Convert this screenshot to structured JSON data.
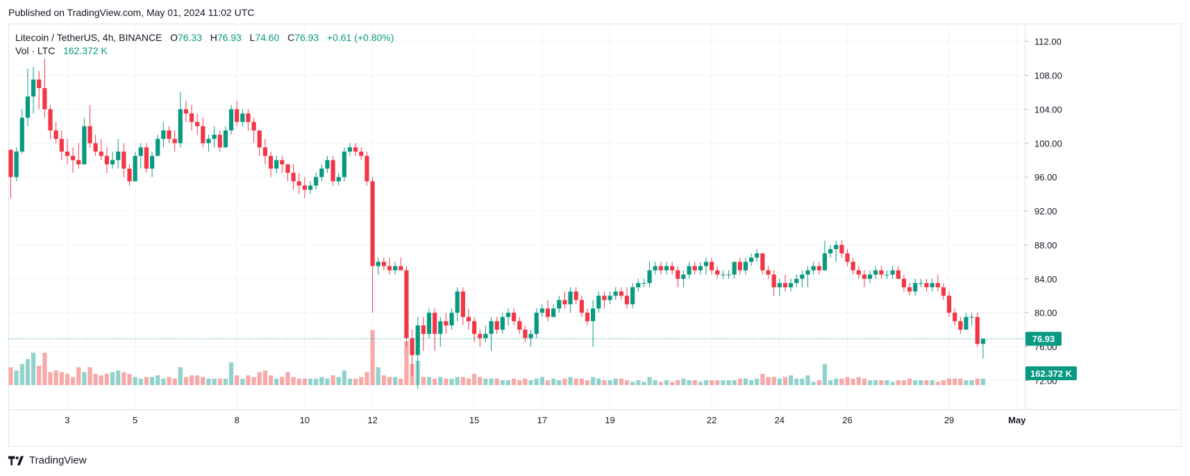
{
  "published": "Published on TradingView.com, May 01, 2024 11:02 UTC",
  "brand": "TradingView",
  "legend": {
    "symbol": "Litecoin / TetherUS, 4h, BINANCE",
    "o_label": "O",
    "o_value": "76.33",
    "h_label": "H",
    "h_value": "76.93",
    "l_label": "L",
    "l_value": "74.60",
    "c_label": "C",
    "c_value": "76.93",
    "change": "+0.61 (+0.80%)",
    "vol_label": "Vol · LTC",
    "vol_value": "162.372 K"
  },
  "colors": {
    "up": "#089981",
    "down": "#F23645",
    "vol_up": "#92D2CC",
    "vol_down": "#F7A9A7",
    "grid": "#F0F3FA"
  },
  "chart_data": {
    "type": "candlestick",
    "symbol": "LTCUSDT",
    "interval": "4h",
    "ylim": [
      68.6,
      114.1
    ],
    "y_ticks": [
      "112.00",
      "108.00",
      "104.00",
      "100.00",
      "96.00",
      "92.00",
      "88.00",
      "84.00",
      "80.00",
      "76.00",
      "72.00"
    ],
    "x_ticks": [
      {
        "label": "3",
        "index": 10
      },
      {
        "label": "5",
        "index": 22
      },
      {
        "label": "8",
        "index": 40
      },
      {
        "label": "10",
        "index": 52
      },
      {
        "label": "12",
        "index": 64
      },
      {
        "label": "15",
        "index": 82
      },
      {
        "label": "17",
        "index": 94
      },
      {
        "label": "19",
        "index": 106
      },
      {
        "label": "22",
        "index": 124
      },
      {
        "label": "24",
        "index": 136
      },
      {
        "label": "26",
        "index": 148
      },
      {
        "label": "29",
        "index": 166
      },
      {
        "label": "May",
        "index": 178
      }
    ],
    "last_price": "76.93",
    "last_volume": "162.372 K",
    "candles": [
      [
        99.2,
        99.3,
        93.5,
        96.0,
        1.1
      ],
      [
        96.0,
        99.5,
        95.5,
        99.0,
        0.9
      ],
      [
        99.0,
        104.0,
        98.8,
        103.0,
        1.3
      ],
      [
        103.0,
        108.8,
        102.0,
        105.5,
        1.6
      ],
      [
        105.5,
        109.0,
        103.5,
        107.5,
        2.0
      ],
      [
        107.5,
        108.5,
        104.0,
        106.5,
        1.2
      ],
      [
        106.5,
        110.0,
        103.0,
        104.0,
        2.0
      ],
      [
        104.0,
        104.5,
        100.5,
        101.5,
        0.8
      ],
      [
        101.5,
        102.5,
        100.0,
        100.5,
        0.9
      ],
      [
        100.5,
        101.5,
        98.0,
        99.0,
        0.8
      ],
      [
        99.0,
        100.5,
        97.5,
        98.5,
        0.7
      ],
      [
        98.5,
        99.5,
        96.5,
        98.0,
        0.5
      ],
      [
        98.0,
        100.0,
        97.0,
        97.5,
        1.1
      ],
      [
        97.5,
        103.0,
        97.5,
        102.0,
        0.8
      ],
      [
        102.0,
        104.5,
        99.5,
        100.0,
        1.1
      ],
      [
        100.0,
        101.0,
        98.5,
        99.0,
        0.7
      ],
      [
        99.0,
        100.5,
        98.0,
        98.5,
        0.6
      ],
      [
        98.5,
        99.5,
        96.5,
        97.5,
        0.7
      ],
      [
        97.5,
        99.0,
        97.0,
        98.0,
        0.8
      ],
      [
        98.0,
        100.5,
        97.0,
        99.0,
        0.9
      ],
      [
        99.0,
        100.0,
        96.0,
        97.0,
        0.8
      ],
      [
        97.0,
        97.5,
        95.0,
        95.5,
        0.7
      ],
      [
        95.5,
        99.0,
        95.5,
        98.5,
        0.5
      ],
      [
        98.5,
        100.0,
        97.0,
        99.5,
        0.4
      ],
      [
        99.5,
        100.0,
        96.5,
        97.0,
        0.5
      ],
      [
        97.0,
        99.0,
        96.0,
        98.5,
        0.5
      ],
      [
        98.5,
        101.0,
        98.5,
        100.5,
        0.6
      ],
      [
        100.5,
        102.5,
        99.5,
        101.5,
        0.4
      ],
      [
        101.5,
        102.0,
        100.0,
        100.5,
        0.5
      ],
      [
        100.5,
        101.5,
        99.0,
        100.0,
        0.4
      ],
      [
        100.0,
        106.0,
        99.5,
        104.0,
        1.1
      ],
      [
        104.0,
        105.0,
        102.5,
        103.5,
        0.5
      ],
      [
        103.5,
        104.5,
        101.5,
        102.5,
        0.6
      ],
      [
        102.5,
        103.5,
        101.0,
        102.0,
        0.6
      ],
      [
        102.0,
        103.0,
        99.5,
        100.0,
        0.5
      ],
      [
        100.0,
        101.0,
        99.0,
        100.5,
        0.4
      ],
      [
        100.5,
        102.0,
        99.5,
        101.0,
        0.4
      ],
      [
        101.0,
        101.5,
        99.0,
        99.5,
        0.4
      ],
      [
        99.5,
        102.0,
        99.5,
        101.5,
        0.4
      ],
      [
        101.5,
        104.5,
        101.0,
        104.0,
        1.4
      ],
      [
        104.0,
        105.0,
        102.0,
        102.5,
        0.6
      ],
      [
        102.5,
        104.0,
        102.0,
        103.5,
        0.4
      ],
      [
        103.5,
        104.0,
        101.5,
        102.5,
        0.6
      ],
      [
        102.5,
        103.0,
        100.0,
        101.5,
        0.5
      ],
      [
        101.5,
        101.5,
        98.5,
        99.5,
        0.8
      ],
      [
        99.5,
        100.5,
        97.5,
        98.5,
        0.9
      ],
      [
        98.5,
        99.0,
        96.0,
        97.0,
        0.6
      ],
      [
        97.0,
        98.5,
        96.5,
        98.0,
        0.4
      ],
      [
        98.0,
        98.5,
        96.5,
        97.5,
        0.5
      ],
      [
        97.5,
        97.5,
        95.5,
        96.5,
        0.8
      ],
      [
        96.5,
        97.5,
        94.5,
        95.5,
        0.5
      ],
      [
        95.5,
        96.5,
        94.0,
        95.0,
        0.4
      ],
      [
        95.0,
        96.0,
        93.5,
        94.5,
        0.4
      ],
      [
        94.5,
        95.5,
        94.0,
        95.0,
        0.4
      ],
      [
        95.0,
        96.5,
        94.5,
        96.0,
        0.4
      ],
      [
        96.0,
        97.5,
        95.5,
        97.0,
        0.5
      ],
      [
        97.0,
        98.5,
        96.5,
        98.0,
        0.4
      ],
      [
        98.0,
        98.5,
        95.0,
        95.5,
        0.6
      ],
      [
        95.5,
        96.5,
        95.0,
        96.0,
        0.5
      ],
      [
        96.0,
        99.5,
        95.5,
        99.0,
        0.9
      ],
      [
        99.0,
        100.0,
        98.5,
        99.5,
        0.4
      ],
      [
        99.5,
        100.0,
        98.5,
        99.0,
        0.4
      ],
      [
        99.0,
        99.5,
        98.0,
        98.5,
        0.5
      ],
      [
        98.5,
        99.0,
        95.0,
        95.5,
        0.8
      ],
      [
        95.5,
        96.0,
        80.0,
        85.5,
        3.4
      ],
      [
        85.5,
        86.5,
        84.5,
        86.0,
        1.1
      ],
      [
        86.0,
        86.5,
        85.0,
        85.5,
        0.6
      ],
      [
        85.5,
        86.5,
        84.5,
        85.0,
        0.5
      ],
      [
        85.0,
        86.0,
        84.5,
        85.5,
        0.5
      ],
      [
        85.5,
        86.5,
        85.0,
        85.0,
        0.4
      ],
      [
        85.0,
        85.5,
        76.0,
        77.0,
        2.7
      ],
      [
        77.0,
        78.0,
        72.5,
        75.0,
        1.3
      ],
      [
        75.0,
        79.5,
        71.0,
        78.5,
        1.5
      ],
      [
        78.5,
        79.5,
        75.5,
        77.5,
        0.5
      ],
      [
        77.5,
        80.5,
        77.0,
        80.0,
        0.5
      ],
      [
        80.0,
        80.5,
        75.5,
        77.5,
        0.4
      ],
      [
        77.5,
        79.5,
        76.0,
        79.0,
        0.5
      ],
      [
        79.0,
        80.0,
        77.5,
        78.5,
        0.4
      ],
      [
        78.5,
        80.5,
        78.0,
        80.0,
        0.4
      ],
      [
        80.0,
        83.0,
        79.0,
        82.5,
        0.5
      ],
      [
        82.5,
        83.0,
        78.5,
        79.5,
        0.5
      ],
      [
        79.5,
        80.5,
        78.0,
        79.0,
        0.4
      ],
      [
        79.0,
        79.5,
        76.5,
        77.5,
        0.7
      ],
      [
        77.5,
        78.0,
        76.0,
        77.0,
        0.5
      ],
      [
        77.0,
        78.5,
        76.5,
        77.5,
        0.4
      ],
      [
        77.5,
        79.5,
        75.5,
        79.0,
        0.4
      ],
      [
        79.0,
        79.5,
        77.5,
        78.0,
        0.4
      ],
      [
        78.0,
        80.0,
        77.5,
        79.5,
        0.3
      ],
      [
        79.5,
        80.5,
        78.5,
        80.0,
        0.3
      ],
      [
        80.0,
        80.5,
        78.5,
        79.0,
        0.4
      ],
      [
        79.0,
        79.5,
        77.5,
        78.0,
        0.3
      ],
      [
        78.0,
        78.5,
        76.5,
        77.0,
        0.4
      ],
      [
        77.0,
        78.0,
        76.0,
        77.5,
        0.3
      ],
      [
        77.5,
        80.5,
        77.0,
        80.0,
        0.4
      ],
      [
        80.0,
        81.0,
        79.5,
        80.5,
        0.5
      ],
      [
        80.5,
        81.5,
        79.0,
        79.5,
        0.3
      ],
      [
        79.5,
        81.0,
        79.5,
        80.5,
        0.4
      ],
      [
        80.5,
        82.0,
        80.0,
        81.5,
        0.3
      ],
      [
        81.5,
        82.5,
        80.5,
        81.0,
        0.4
      ],
      [
        81.0,
        83.0,
        80.0,
        82.5,
        0.5
      ],
      [
        82.5,
        83.0,
        81.0,
        81.5,
        0.4
      ],
      [
        81.5,
        82.0,
        79.5,
        80.0,
        0.4
      ],
      [
        80.0,
        80.5,
        78.5,
        79.0,
        0.3
      ],
      [
        79.0,
        81.5,
        76.0,
        80.5,
        0.5
      ],
      [
        80.5,
        82.5,
        80.0,
        82.0,
        0.4
      ],
      [
        82.0,
        82.5,
        80.5,
        81.5,
        0.3
      ],
      [
        81.5,
        82.5,
        81.0,
        82.0,
        0.3
      ],
      [
        82.0,
        83.0,
        81.5,
        82.5,
        0.4
      ],
      [
        82.5,
        83.0,
        81.5,
        82.0,
        0.4
      ],
      [
        82.0,
        83.0,
        80.5,
        81.0,
        0.3
      ],
      [
        81.0,
        83.5,
        80.5,
        83.0,
        0.2
      ],
      [
        83.0,
        84.0,
        82.5,
        83.5,
        0.3
      ],
      [
        83.5,
        84.0,
        83.0,
        83.5,
        0.2
      ],
      [
        83.5,
        86.0,
        83.0,
        85.0,
        0.5
      ],
      [
        85.0,
        86.0,
        84.5,
        85.5,
        0.3
      ],
      [
        85.5,
        86.0,
        84.5,
        85.0,
        0.2
      ],
      [
        85.0,
        86.0,
        84.5,
        85.5,
        0.3
      ],
      [
        85.5,
        86.0,
        84.5,
        85.0,
        0.2
      ],
      [
        85.0,
        85.5,
        83.0,
        84.0,
        0.3
      ],
      [
        84.0,
        85.0,
        83.0,
        84.5,
        0.4
      ],
      [
        84.5,
        86.0,
        84.0,
        85.5,
        0.3
      ],
      [
        85.5,
        86.0,
        84.5,
        85.0,
        0.3
      ],
      [
        85.0,
        86.0,
        84.5,
        85.5,
        0.2
      ],
      [
        85.5,
        86.5,
        84.5,
        86.0,
        0.3
      ],
      [
        86.0,
        86.5,
        84.5,
        85.0,
        0.3
      ],
      [
        85.0,
        85.5,
        84.0,
        84.5,
        0.3
      ],
      [
        84.5,
        85.0,
        84.0,
        84.5,
        0.3
      ],
      [
        84.5,
        85.0,
        84.0,
        84.5,
        0.3
      ],
      [
        84.5,
        86.0,
        84.0,
        86.0,
        0.3
      ],
      [
        86.0,
        86.5,
        84.5,
        85.0,
        0.4
      ],
      [
        85.0,
        86.5,
        84.5,
        86.0,
        0.4
      ],
      [
        86.0,
        87.0,
        85.5,
        86.5,
        0.3
      ],
      [
        86.5,
        87.5,
        86.0,
        87.0,
        0.4
      ],
      [
        87.0,
        87.0,
        84.5,
        85.0,
        0.7
      ],
      [
        85.0,
        85.5,
        84.0,
        84.5,
        0.5
      ],
      [
        84.5,
        85.0,
        82.0,
        83.0,
        0.5
      ],
      [
        83.0,
        84.0,
        82.0,
        83.5,
        0.4
      ],
      [
        83.5,
        84.5,
        82.5,
        83.0,
        0.5
      ],
      [
        83.0,
        84.0,
        82.5,
        83.5,
        0.6
      ],
      [
        83.5,
        84.5,
        83.0,
        84.0,
        0.4
      ],
      [
        84.0,
        85.0,
        83.0,
        84.5,
        0.4
      ],
      [
        84.5,
        85.5,
        83.0,
        85.0,
        0.6
      ],
      [
        85.0,
        86.0,
        84.5,
        85.5,
        0.2
      ],
      [
        85.5,
        86.0,
        84.5,
        85.0,
        0.3
      ],
      [
        85.0,
        88.5,
        85.0,
        87.0,
        1.3
      ],
      [
        87.0,
        88.0,
        86.5,
        87.5,
        0.3
      ],
      [
        87.5,
        88.5,
        86.0,
        88.0,
        0.4
      ],
      [
        88.0,
        88.5,
        86.5,
        87.0,
        0.4
      ],
      [
        87.0,
        87.5,
        85.5,
        86.0,
        0.5
      ],
      [
        86.0,
        86.5,
        84.5,
        85.0,
        0.4
      ],
      [
        85.0,
        85.5,
        84.0,
        84.5,
        0.5
      ],
      [
        84.5,
        85.0,
        83.0,
        84.0,
        0.4
      ],
      [
        84.0,
        85.0,
        83.5,
        84.5,
        0.3
      ],
      [
        84.5,
        85.5,
        84.0,
        85.0,
        0.3
      ],
      [
        85.0,
        85.5,
        84.0,
        84.5,
        0.3
      ],
      [
        84.5,
        85.0,
        84.0,
        84.5,
        0.3
      ],
      [
        84.5,
        85.5,
        84.0,
        85.0,
        0.2
      ],
      [
        85.0,
        85.5,
        84.0,
        84.0,
        0.3
      ],
      [
        84.0,
        84.5,
        82.5,
        83.0,
        0.3
      ],
      [
        83.0,
        83.5,
        82.0,
        82.5,
        0.4
      ],
      [
        82.5,
        84.0,
        82.0,
        83.5,
        0.3
      ],
      [
        83.5,
        84.0,
        83.0,
        83.5,
        0.3
      ],
      [
        83.5,
        84.0,
        82.5,
        83.0,
        0.3
      ],
      [
        83.0,
        84.0,
        82.5,
        83.5,
        0.3
      ],
      [
        83.5,
        84.5,
        82.5,
        83.0,
        0.2
      ],
      [
        83.0,
        83.5,
        81.5,
        82.0,
        0.3
      ],
      [
        82.0,
        82.5,
        79.5,
        80.0,
        0.4
      ],
      [
        80.0,
        80.5,
        78.5,
        79.0,
        0.4
      ],
      [
        79.0,
        79.5,
        77.5,
        78.0,
        0.4
      ],
      [
        78.0,
        80.0,
        78.0,
        79.5,
        0.3
      ],
      [
        79.5,
        80.0,
        78.5,
        79.5,
        0.3
      ],
      [
        79.5,
        80.0,
        76.0,
        76.33,
        0.4
      ],
      [
        76.33,
        76.93,
        74.6,
        76.93,
        0.4
      ]
    ],
    "volume_ylim": [
      0,
      3.85
    ]
  }
}
